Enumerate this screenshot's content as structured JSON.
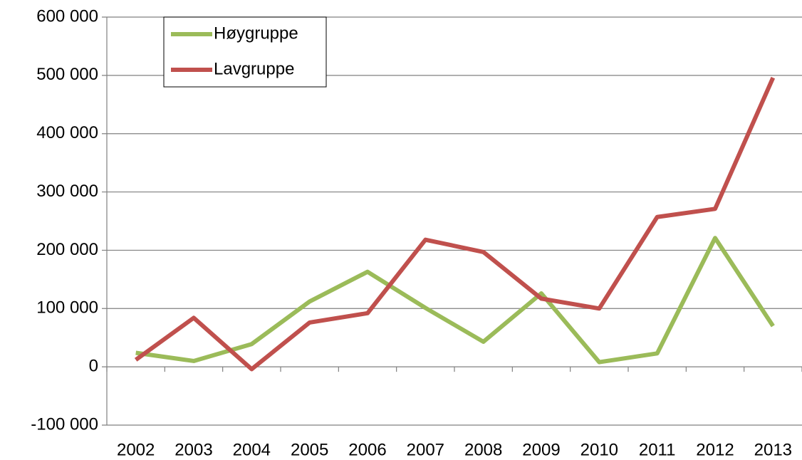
{
  "chart_data": {
    "type": "line",
    "categories": [
      "2002",
      "2003",
      "2004",
      "2005",
      "2006",
      "2007",
      "2008",
      "2009",
      "2010",
      "2011",
      "2012",
      "2013"
    ],
    "series": [
      {
        "name": "Høygruppe",
        "color": "#9bbb59",
        "values": [
          24000,
          10000,
          39000,
          112000,
          163000,
          101000,
          43000,
          126000,
          8000,
          23000,
          221000,
          70000
        ]
      },
      {
        "name": "Lavgruppe",
        "color": "#c0504d",
        "values": [
          12000,
          84000,
          -4000,
          76000,
          92000,
          218000,
          197000,
          117000,
          100000,
          257000,
          271000,
          496000
        ]
      }
    ],
    "ylim": [
      -100000,
      600000
    ],
    "yticks": [
      {
        "value": -100000,
        "label": "-100 000"
      },
      0,
      {
        "value": 100000,
        "label": "100 000"
      },
      {
        "value": 200000,
        "label": "200 000"
      },
      {
        "value": 300000,
        "label": "300 000"
      },
      {
        "value": 400000,
        "label": "400 000"
      },
      {
        "value": 500000,
        "label": "500 000"
      },
      {
        "value": 600000,
        "label": "600 000"
      }
    ],
    "grid": true,
    "legend": "upper left"
  }
}
